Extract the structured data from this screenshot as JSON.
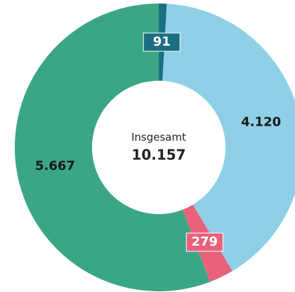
{
  "chart_data": {
    "type": "donut",
    "categories": [
      null,
      null,
      null,
      null
    ],
    "values": [
      91,
      4120,
      279,
      5667
    ],
    "value_labels": [
      "91",
      "4.120",
      "279",
      "5.667"
    ],
    "colors": [
      "#1b6f82",
      "#8fd0e6",
      "#e8627c",
      "#3ba686"
    ],
    "center_title": "Insgesamt",
    "total": {
      "value": 10157,
      "label": "10.157"
    }
  }
}
